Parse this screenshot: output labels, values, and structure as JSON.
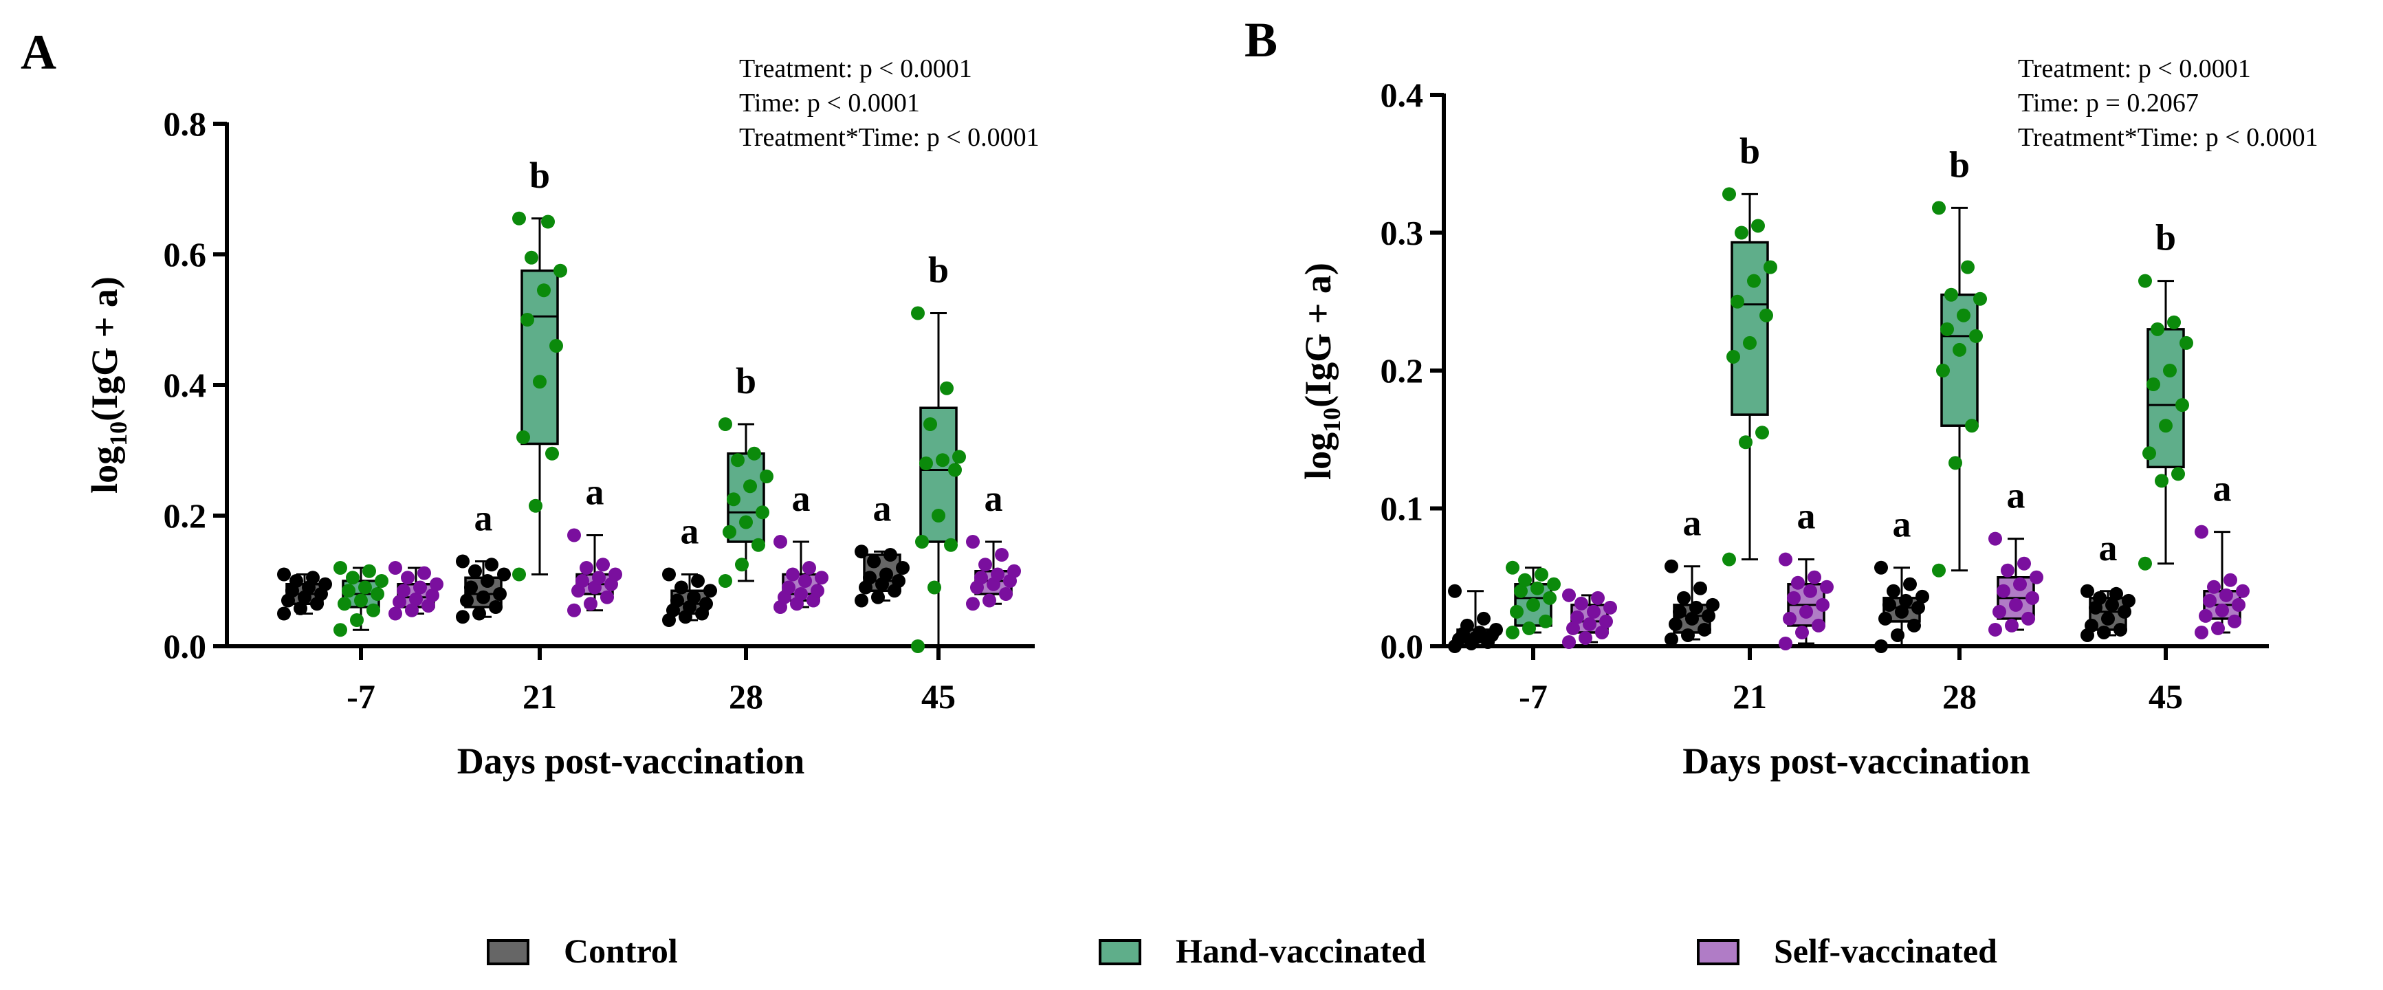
{
  "legend": [
    {
      "label": "Control",
      "fill": "#666666",
      "dot": "#000000"
    },
    {
      "label": "Hand-vaccinated",
      "fill": "#5fae8a",
      "dot": "#0b8a0b"
    },
    {
      "label": "Self-vaccinated",
      "fill": "#b07cc6",
      "dot": "#7a0f9e"
    }
  ],
  "chart_data": [
    {
      "type": "box",
      "panel": "A",
      "ylabel_main": "log",
      "ylabel_sub": "10",
      "ylabel_tail": "(IgG + a)",
      "xlabel": "Days post-vaccination",
      "ylim": [
        0,
        0.8
      ],
      "yticks": [
        0.0,
        0.2,
        0.4,
        0.6,
        0.8
      ],
      "ytick_labels": [
        "0.0",
        "0.2",
        "0.4",
        "0.6",
        "0.8"
      ],
      "categories": [
        "-7",
        "21",
        "28",
        "45"
      ],
      "stats": [
        "Treatment: p < 0.0001",
        "Time: p < 0.0001",
        "Treatment*Time: p < 0.0001"
      ],
      "groups": [
        {
          "category": "-7",
          "boxes": [
            {
              "series": "Control",
              "min": 0.05,
              "q1": 0.065,
              "median": 0.08,
              "q3": 0.095,
              "max": 0.11,
              "letter": "",
              "points": [
                0.05,
                0.058,
                0.065,
                0.07,
                0.075,
                0.08,
                0.085,
                0.09,
                0.095,
                0.1,
                0.105,
                0.11
              ]
            },
            {
              "series": "Hand-vaccinated",
              "min": 0.025,
              "q1": 0.06,
              "median": 0.08,
              "q3": 0.1,
              "max": 0.12,
              "letter": "",
              "points": [
                0.025,
                0.04,
                0.055,
                0.065,
                0.07,
                0.08,
                0.085,
                0.09,
                0.1,
                0.105,
                0.115,
                0.12
              ]
            },
            {
              "series": "Self-vaccinated",
              "min": 0.05,
              "q1": 0.06,
              "median": 0.075,
              "q3": 0.095,
              "max": 0.12,
              "letter": "",
              "points": [
                0.05,
                0.055,
                0.062,
                0.068,
                0.072,
                0.078,
                0.085,
                0.09,
                0.095,
                0.105,
                0.112,
                0.12
              ]
            }
          ]
        },
        {
          "category": "21",
          "boxes": [
            {
              "series": "Control",
              "min": 0.045,
              "q1": 0.06,
              "median": 0.08,
              "q3": 0.105,
              "max": 0.13,
              "letter": "a",
              "points": [
                0.045,
                0.05,
                0.06,
                0.07,
                0.075,
                0.08,
                0.09,
                0.1,
                0.11,
                0.115,
                0.125,
                0.13
              ]
            },
            {
              "series": "Hand-vaccinated",
              "min": 0.11,
              "q1": 0.31,
              "median": 0.505,
              "q3": 0.575,
              "max": 0.655,
              "letter": "b",
              "points": [
                0.11,
                0.215,
                0.295,
                0.32,
                0.405,
                0.46,
                0.5,
                0.545,
                0.575,
                0.595,
                0.65,
                0.655
              ]
            },
            {
              "series": "Self-vaccinated",
              "min": 0.055,
              "q1": 0.08,
              "median": 0.095,
              "q3": 0.11,
              "max": 0.17,
              "letter": "a",
              "points": [
                0.055,
                0.065,
                0.075,
                0.085,
                0.09,
                0.095,
                0.1,
                0.105,
                0.11,
                0.12,
                0.125,
                0.17
              ]
            }
          ]
        },
        {
          "category": "28",
          "boxes": [
            {
              "series": "Control",
              "min": 0.04,
              "q1": 0.05,
              "median": 0.065,
              "q3": 0.085,
              "max": 0.11,
              "letter": "a",
              "points": [
                0.04,
                0.045,
                0.05,
                0.055,
                0.06,
                0.065,
                0.07,
                0.075,
                0.085,
                0.09,
                0.1,
                0.11
              ]
            },
            {
              "series": "Hand-vaccinated",
              "min": 0.1,
              "q1": 0.16,
              "median": 0.205,
              "q3": 0.295,
              "max": 0.34,
              "letter": "b",
              "points": [
                0.1,
                0.125,
                0.155,
                0.175,
                0.19,
                0.205,
                0.225,
                0.245,
                0.26,
                0.285,
                0.295,
                0.34
              ]
            },
            {
              "series": "Self-vaccinated",
              "min": 0.06,
              "q1": 0.07,
              "median": 0.08,
              "q3": 0.11,
              "max": 0.16,
              "letter": "a",
              "points": [
                0.06,
                0.065,
                0.07,
                0.075,
                0.08,
                0.085,
                0.09,
                0.1,
                0.105,
                0.11,
                0.12,
                0.16
              ]
            }
          ]
        },
        {
          "category": "45",
          "boxes": [
            {
              "series": "Control",
              "min": 0.07,
              "q1": 0.085,
              "median": 0.1,
              "q3": 0.14,
              "max": 0.145,
              "letter": "a",
              "points": [
                0.07,
                0.075,
                0.085,
                0.09,
                0.095,
                0.1,
                0.105,
                0.11,
                0.12,
                0.13,
                0.14,
                0.145
              ]
            },
            {
              "series": "Hand-vaccinated",
              "min": 0.0,
              "q1": 0.16,
              "median": 0.27,
              "q3": 0.365,
              "max": 0.51,
              "letter": "b",
              "points": [
                0.0,
                0.09,
                0.155,
                0.16,
                0.2,
                0.27,
                0.28,
                0.285,
                0.29,
                0.34,
                0.395,
                0.51
              ]
            },
            {
              "series": "Self-vaccinated",
              "min": 0.065,
              "q1": 0.08,
              "median": 0.1,
              "q3": 0.115,
              "max": 0.16,
              "letter": "a",
              "points": [
                0.065,
                0.07,
                0.08,
                0.09,
                0.095,
                0.1,
                0.105,
                0.11,
                0.115,
                0.125,
                0.14,
                0.16
              ]
            }
          ]
        }
      ]
    },
    {
      "type": "box",
      "panel": "B",
      "ylabel_main": "log",
      "ylabel_sub": "10",
      "ylabel_tail": "(IgG + a)",
      "xlabel": "Days post-vaccination",
      "ylim": [
        0,
        0.4
      ],
      "yticks": [
        0.0,
        0.1,
        0.2,
        0.3,
        0.4
      ],
      "ytick_labels": [
        "0.0",
        "0.1",
        "0.2",
        "0.3",
        "0.4"
      ],
      "categories": [
        "-7",
        "21",
        "28",
        "45"
      ],
      "stats": [
        "Treatment: p < 0.0001",
        "Time: p = 0.2067",
        "Treatment*Time: p < 0.0001"
      ],
      "groups": [
        {
          "category": "-7",
          "boxes": [
            {
              "series": "Control",
              "min": 0.0,
              "q1": 0.003,
              "median": 0.008,
              "q3": 0.012,
              "max": 0.04,
              "letter": "",
              "points": [
                0.0,
                0.002,
                0.003,
                0.005,
                0.006,
                0.008,
                0.009,
                0.01,
                0.012,
                0.015,
                0.02,
                0.04
              ]
            },
            {
              "series": "Hand-vaccinated",
              "min": 0.01,
              "q1": 0.015,
              "median": 0.035,
              "q3": 0.045,
              "max": 0.057,
              "letter": "",
              "points": [
                0.01,
                0.013,
                0.018,
                0.025,
                0.03,
                0.035,
                0.04,
                0.042,
                0.045,
                0.048,
                0.052,
                0.057
              ]
            },
            {
              "series": "Self-vaccinated",
              "min": 0.003,
              "q1": 0.01,
              "median": 0.018,
              "q3": 0.03,
              "max": 0.037,
              "letter": "",
              "points": [
                0.003,
                0.006,
                0.01,
                0.013,
                0.016,
                0.018,
                0.021,
                0.025,
                0.028,
                0.031,
                0.035,
                0.037
              ]
            }
          ]
        },
        {
          "category": "21",
          "boxes": [
            {
              "series": "Control",
              "min": 0.005,
              "q1": 0.01,
              "median": 0.022,
              "q3": 0.03,
              "max": 0.058,
              "letter": "a",
              "points": [
                0.005,
                0.008,
                0.012,
                0.016,
                0.02,
                0.022,
                0.025,
                0.028,
                0.03,
                0.035,
                0.042,
                0.058
              ]
            },
            {
              "series": "Hand-vaccinated",
              "min": 0.063,
              "q1": 0.168,
              "median": 0.248,
              "q3": 0.293,
              "max": 0.328,
              "letter": "b",
              "points": [
                0.063,
                0.148,
                0.155,
                0.21,
                0.22,
                0.24,
                0.25,
                0.265,
                0.275,
                0.3,
                0.305,
                0.328
              ]
            },
            {
              "series": "Self-vaccinated",
              "min": 0.002,
              "q1": 0.015,
              "median": 0.03,
              "q3": 0.045,
              "max": 0.063,
              "letter": "a",
              "points": [
                0.002,
                0.01,
                0.015,
                0.02,
                0.025,
                0.03,
                0.035,
                0.04,
                0.043,
                0.046,
                0.05,
                0.063
              ]
            }
          ]
        },
        {
          "category": "28",
          "boxes": [
            {
              "series": "Control",
              "min": 0.0,
              "q1": 0.018,
              "median": 0.028,
              "q3": 0.035,
              "max": 0.057,
              "letter": "a",
              "points": [
                0.0,
                0.008,
                0.015,
                0.02,
                0.025,
                0.028,
                0.03,
                0.033,
                0.036,
                0.04,
                0.045,
                0.057
              ]
            },
            {
              "series": "Hand-vaccinated",
              "min": 0.055,
              "q1": 0.16,
              "median": 0.225,
              "q3": 0.255,
              "max": 0.318,
              "letter": "b",
              "points": [
                0.055,
                0.133,
                0.16,
                0.2,
                0.215,
                0.225,
                0.23,
                0.24,
                0.252,
                0.255,
                0.275,
                0.318
              ]
            },
            {
              "series": "Self-vaccinated",
              "min": 0.012,
              "q1": 0.02,
              "median": 0.035,
              "q3": 0.05,
              "max": 0.078,
              "letter": "a",
              "points": [
                0.012,
                0.015,
                0.02,
                0.025,
                0.03,
                0.035,
                0.04,
                0.045,
                0.05,
                0.055,
                0.06,
                0.078
              ]
            }
          ]
        },
        {
          "category": "45",
          "boxes": [
            {
              "series": "Control",
              "min": 0.008,
              "q1": 0.012,
              "median": 0.025,
              "q3": 0.035,
              "max": 0.04,
              "letter": "a",
              "points": [
                0.008,
                0.01,
                0.012,
                0.015,
                0.02,
                0.025,
                0.028,
                0.03,
                0.033,
                0.035,
                0.038,
                0.04
              ]
            },
            {
              "series": "Hand-vaccinated",
              "min": 0.06,
              "q1": 0.13,
              "median": 0.175,
              "q3": 0.23,
              "max": 0.265,
              "letter": "b",
              "points": [
                0.06,
                0.12,
                0.125,
                0.14,
                0.16,
                0.175,
                0.19,
                0.2,
                0.22,
                0.23,
                0.235,
                0.265
              ]
            },
            {
              "series": "Self-vaccinated",
              "min": 0.01,
              "q1": 0.02,
              "median": 0.03,
              "q3": 0.04,
              "max": 0.083,
              "letter": "a",
              "points": [
                0.01,
                0.013,
                0.018,
                0.022,
                0.026,
                0.03,
                0.033,
                0.037,
                0.04,
                0.043,
                0.048,
                0.083
              ]
            }
          ]
        }
      ]
    }
  ]
}
